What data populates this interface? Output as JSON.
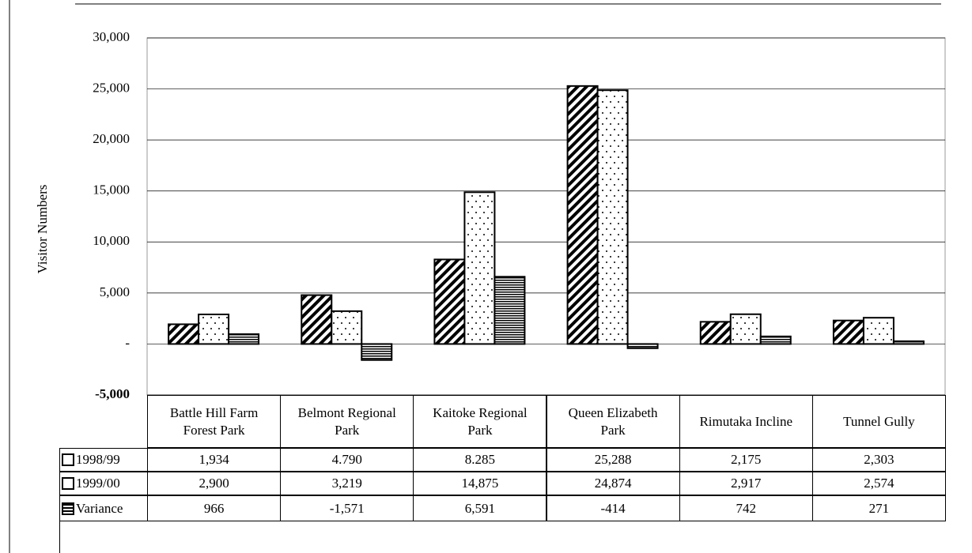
{
  "chart_data": {
    "type": "bar",
    "y_label": "Visitor Numbers",
    "categories": [
      "Battle Hill Farm Forest Park",
      "Belmont Regional Park",
      "Kaitoke Regional Park",
      "Queen Elizabeth Park",
      "Rimutaka Incline",
      "Tunnel Gully"
    ],
    "series": [
      {
        "name": "1998/99",
        "color": "#000000",
        "values": [
          1934,
          4790,
          8285,
          25288,
          2175,
          2303
        ],
        "value_labels": [
          "1,934",
          "4.790",
          "8.285",
          "25,288",
          "2,175",
          "2,303"
        ]
      },
      {
        "name": "1999/00",
        "color": "#000000",
        "values": [
          2900,
          3219,
          14875,
          24874,
          2917,
          2574
        ],
        "value_labels": [
          "2,900",
          "3,219",
          "14,875",
          "24,874",
          "2,917",
          "2,574"
        ]
      },
      {
        "name": "Variance",
        "color": "#000000",
        "values": [
          966,
          -1571,
          6591,
          -414,
          742,
          271
        ],
        "value_labels": [
          "966",
          "-1,571",
          "6,591",
          "-414",
          "742",
          "271"
        ]
      }
    ],
    "ylim": [
      -5000,
      30000
    ],
    "yticks": [
      {
        "value": -5000,
        "label": "-5,000"
      },
      {
        "value": 0,
        "label": "-"
      },
      {
        "value": 5000,
        "label": "5,000"
      },
      {
        "value": 10000,
        "label": "10,000"
      },
      {
        "value": 15000,
        "label": "15,000"
      },
      {
        "value": 20000,
        "label": "20,000"
      },
      {
        "value": 25000,
        "label": "25,000"
      },
      {
        "value": 30000,
        "label": "30,000"
      }
    ],
    "grid": true
  }
}
